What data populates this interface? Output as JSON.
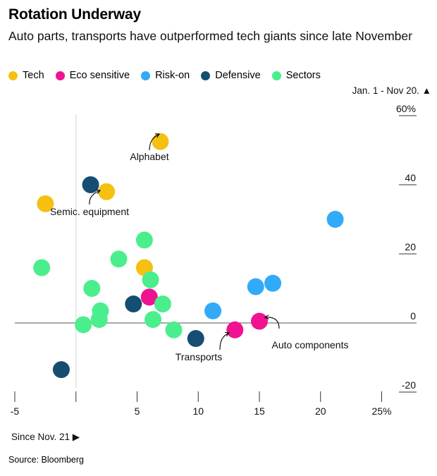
{
  "title": "Rotation Underway",
  "subtitle": "Auto parts, transports have outperformed tech giants since late November",
  "source": "Source: Bloomberg",
  "legend": [
    {
      "name": "Tech",
      "color": "#f6c011"
    },
    {
      "name": "Eco sensitive",
      "color": "#ef1291"
    },
    {
      "name": "Risk-on",
      "color": "#33aaf8"
    },
    {
      "name": "Defensive",
      "color": "#164e72"
    },
    {
      "name": "Sectors",
      "color": "#4aee8c"
    }
  ],
  "chart_data": {
    "type": "scatter",
    "title": "Rotation Underway",
    "subtitle": "Auto parts, transports have outperformed tech giants since late November",
    "xlabel": "Since Nov. 21 ▶",
    "ylabel": "Jan. 1 - Nov 20. ▲",
    "xlim": [
      -5,
      25
    ],
    "ylim": [
      -20,
      60
    ],
    "x_ticks": [
      -5,
      0,
      5,
      10,
      15,
      20,
      25
    ],
    "x_tick_labels": [
      "-5",
      "",
      "5",
      "10",
      "15",
      "20",
      "25%"
    ],
    "y_ticks": [
      -20,
      0,
      20,
      40,
      60
    ],
    "y_tick_labels": [
      "-20",
      "0",
      "20",
      "40",
      "60%"
    ],
    "grid": false,
    "legend_position": "top-left",
    "series": [
      {
        "name": "Tech",
        "color": "#f6c011",
        "points": [
          [
            6.9,
            52.5
          ],
          [
            2.5,
            38
          ],
          [
            -2.5,
            34.5
          ],
          [
            5.6,
            16
          ]
        ]
      },
      {
        "name": "Eco sensitive",
        "color": "#ef1291",
        "points": [
          [
            6,
            7.5
          ],
          [
            13,
            -2
          ],
          [
            15,
            0.5
          ]
        ]
      },
      {
        "name": "Risk-on",
        "color": "#33aaf8",
        "points": [
          [
            21.2,
            30
          ],
          [
            11.2,
            3.5
          ],
          [
            14.7,
            10.5
          ],
          [
            16.1,
            11.5
          ]
        ]
      },
      {
        "name": "Defensive",
        "color": "#164e72",
        "points": [
          [
            1.2,
            40
          ],
          [
            4.7,
            5.5
          ],
          [
            9.8,
            -4.5
          ],
          [
            -1.2,
            -13.5
          ]
        ]
      },
      {
        "name": "Sectors",
        "color": "#4aee8c",
        "points": [
          [
            -2.8,
            16
          ],
          [
            1.3,
            10
          ],
          [
            3.5,
            18.5
          ],
          [
            5.6,
            24
          ],
          [
            6.1,
            12.5
          ],
          [
            7.1,
            5.5
          ],
          [
            2,
            3.5
          ],
          [
            1.9,
            1
          ],
          [
            0.6,
            -0.5
          ],
          [
            6.3,
            1
          ],
          [
            8,
            -2
          ]
        ]
      }
    ],
    "annotations": [
      {
        "text": "Alphabet",
        "point": [
          6.9,
          52.5
        ]
      },
      {
        "text": "Semic. equipment",
        "point": [
          2.5,
          38
        ]
      },
      {
        "text": "Transports",
        "point": [
          13,
          -2
        ]
      },
      {
        "text": "Auto components",
        "point": [
          15,
          0.5
        ]
      }
    ]
  }
}
